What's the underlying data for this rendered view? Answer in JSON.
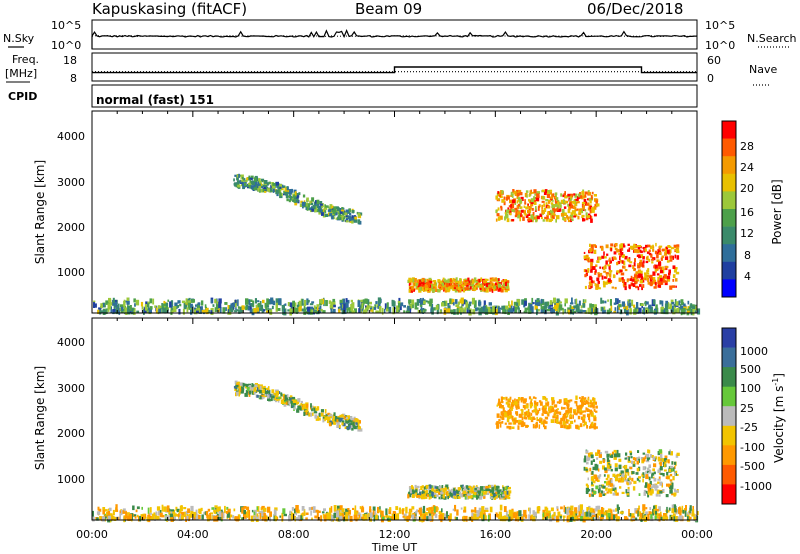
{
  "header": {
    "station": "Kapuskasing (fitACF)",
    "beam": "Beam 09",
    "date": "06/Dec/2018"
  },
  "noise_panel": {
    "left_label": "N.Sky",
    "left_ticks": [
      "10^5",
      "10^0"
    ],
    "right_ticks": [
      "10^5",
      "10^0"
    ],
    "right_label": "N.Search"
  },
  "freq_panel": {
    "left_label_1": "Freq.",
    "left_label_2": "[MHz]",
    "left_ticks": [
      "18",
      "8"
    ],
    "right_ticks": [
      "60",
      "0"
    ],
    "right_label": "Nave"
  },
  "cpid_panel": {
    "label": "CPID",
    "value": "normal (fast) 151"
  },
  "x_axis": {
    "ticks": [
      "00:00",
      "04:00",
      "08:00",
      "12:00",
      "16:00",
      "20:00",
      "00:00"
    ],
    "label": "Time UT"
  },
  "power_panel": {
    "ylabel": "Slant Range [km]",
    "yticks": [
      "4000",
      "3000",
      "2000",
      "1000"
    ],
    "cbar_label": "Power [dB]",
    "cbar_ticks": [
      "28",
      "24",
      "20",
      "16",
      "12",
      "8",
      "4"
    ]
  },
  "velocity_panel": {
    "ylabel": "Slant Range [km]",
    "yticks": [
      "4000",
      "3000",
      "2000",
      "1000"
    ],
    "cbar_label": "Velocity [m s",
    "cbar_label_sup": "-1",
    "cbar_label_end": "]",
    "cbar_ticks": [
      "1000",
      "500",
      "100",
      "25",
      "-25",
      "-100",
      "-500",
      "-1000"
    ]
  },
  "colors": {
    "power_scale": [
      "#0000ff",
      "#1f3fa0",
      "#2f6e9a",
      "#3a8a6a",
      "#4da04a",
      "#9cc83a",
      "#e8c000",
      "#f49a00",
      "#ff5a00",
      "#ff0000"
    ],
    "velocity_scale": [
      "#2a3fa5",
      "#3a6e9a",
      "#3a8a4a",
      "#66c83a",
      "#bbbbbb",
      "#f2c400",
      "#ff9900",
      "#ff5a00",
      "#ff0000"
    ]
  },
  "chart_data": [
    {
      "type": "line",
      "title": "Kapuskasing (fitACF) Beam 09 06/Dec/2018",
      "series": [
        {
          "name": "N.Sky"
        },
        {
          "name": "N.Search"
        }
      ],
      "x_units": "hours UT",
      "xlim": [
        0,
        24
      ],
      "ylim_log10": [
        0,
        5
      ]
    },
    {
      "type": "line",
      "series": [
        {
          "name": "Freq.",
          "units": "MHz",
          "points": [
            [
              0,
              11
            ],
            [
              12,
              11
            ],
            [
              12,
              13
            ],
            [
              21.8,
              13
            ],
            [
              21.8,
              11
            ],
            [
              24,
              11
            ]
          ]
        },
        {
          "name": "Nave",
          "points": [
            [
              0,
              20
            ],
            [
              24,
              20
            ]
          ]
        }
      ],
      "ylim_left": [
        8,
        18
      ],
      "ylim_right": [
        0,
        60
      ]
    },
    {
      "type": "heatmap",
      "quantity": "Power",
      "units": "dB",
      "xlabel": "Time UT",
      "ylabel": "Slant Range [km]",
      "xlim": [
        0,
        24
      ],
      "ylim": [
        180,
        4500
      ],
      "clim": [
        0,
        30
      ],
      "echo_regions": [
        {
          "t": [
            0,
            24
          ],
          "range": [
            200,
            450
          ],
          "level": 12
        },
        {
          "t": [
            5.6,
            10.6
          ],
          "range": [
            2100,
            3150
          ],
          "level": 12
        },
        {
          "t": [
            12.5,
            16.5
          ],
          "range": [
            650,
            900
          ],
          "level": 22
        },
        {
          "t": [
            16.0,
            20.0
          ],
          "range": [
            2150,
            2800
          ],
          "level": 22
        },
        {
          "t": [
            19.5,
            23.2
          ],
          "range": [
            700,
            1650
          ],
          "level": 25
        }
      ]
    },
    {
      "type": "heatmap",
      "quantity": "Velocity",
      "units": "m s-1",
      "xlabel": "Time UT",
      "ylabel": "Slant Range [km]",
      "xlim": [
        0,
        24
      ],
      "ylim": [
        180,
        4500
      ],
      "clim": [
        -1000,
        1000
      ],
      "echo_regions": [
        {
          "t": [
            0,
            24
          ],
          "range": [
            200,
            450
          ],
          "velocity": -50
        },
        {
          "t": [
            5.6,
            10.6
          ],
          "range": [
            2100,
            3150
          ],
          "velocity": 0
        },
        {
          "t": [
            12.5,
            16.5
          ],
          "range": [
            650,
            900
          ],
          "velocity": 0
        },
        {
          "t": [
            16.0,
            20.0
          ],
          "range": [
            2150,
            2800
          ],
          "velocity": -150
        },
        {
          "t": [
            19.5,
            23.2
          ],
          "range": [
            700,
            1650
          ],
          "velocity": -25
        }
      ]
    }
  ]
}
